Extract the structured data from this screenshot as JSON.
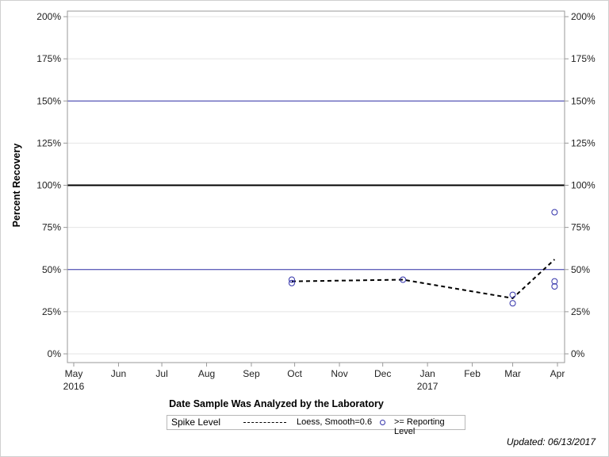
{
  "chart_data": {
    "type": "scatter",
    "title": "",
    "xlabel": "Date Sample Was Analyzed by the Laboratory",
    "ylabel": "Percent Recovery",
    "ylim": [
      0,
      200
    ],
    "y_ticks": [
      "0%",
      "25%",
      "50%",
      "75%",
      "100%",
      "125%",
      "150%",
      "175%",
      "200%"
    ],
    "x_ticks": [
      {
        "label": "May",
        "sub": "2016"
      },
      {
        "label": "Jun",
        "sub": ""
      },
      {
        "label": "Jul",
        "sub": ""
      },
      {
        "label": "Aug",
        "sub": ""
      },
      {
        "label": "Sep",
        "sub": ""
      },
      {
        "label": "Oct",
        "sub": ""
      },
      {
        "label": "Nov",
        "sub": ""
      },
      {
        "label": "Dec",
        "sub": ""
      },
      {
        "label": "Jan",
        "sub": "2017"
      },
      {
        "label": "Feb",
        "sub": ""
      },
      {
        "label": "Mar",
        "sub": ""
      },
      {
        "label": "Apr",
        "sub": ""
      }
    ],
    "grid": true,
    "reference_lines": [
      {
        "y": 50,
        "color": "#3333aa",
        "width": 1
      },
      {
        "y": 100,
        "color": "#000000",
        "width": 2
      },
      {
        "y": 150,
        "color": "#3333aa",
        "width": 1
      }
    ],
    "series": [
      {
        "name": ">= Reporting Level",
        "kind": "scatter",
        "color": "#3333aa",
        "points": [
          {
            "x": "2016-09-29",
            "y": 44
          },
          {
            "x": "2016-09-29",
            "y": 42
          },
          {
            "x": "2016-12-15",
            "y": 44
          },
          {
            "x": "2017-03-01",
            "y": 35
          },
          {
            "x": "2017-03-01",
            "y": 30
          },
          {
            "x": "2017-03-30",
            "y": 84
          },
          {
            "x": "2017-03-30",
            "y": 43
          },
          {
            "x": "2017-03-30",
            "y": 40
          }
        ]
      },
      {
        "name": "Loess, Smooth=0.6",
        "kind": "line",
        "style": "dashed",
        "color": "#000000",
        "points": [
          {
            "x": "2016-09-29",
            "y": 43
          },
          {
            "x": "2016-12-15",
            "y": 44
          },
          {
            "x": "2017-03-01",
            "y": 33
          },
          {
            "x": "2017-03-30",
            "y": 56
          }
        ]
      }
    ],
    "legend_position": "bottom"
  },
  "legend": {
    "title": "Spike Level",
    "line_label": "Loess, Smooth=0.6",
    "marker_label": ">= Reporting Level"
  },
  "footnote": "Updated: 06/13/2017"
}
